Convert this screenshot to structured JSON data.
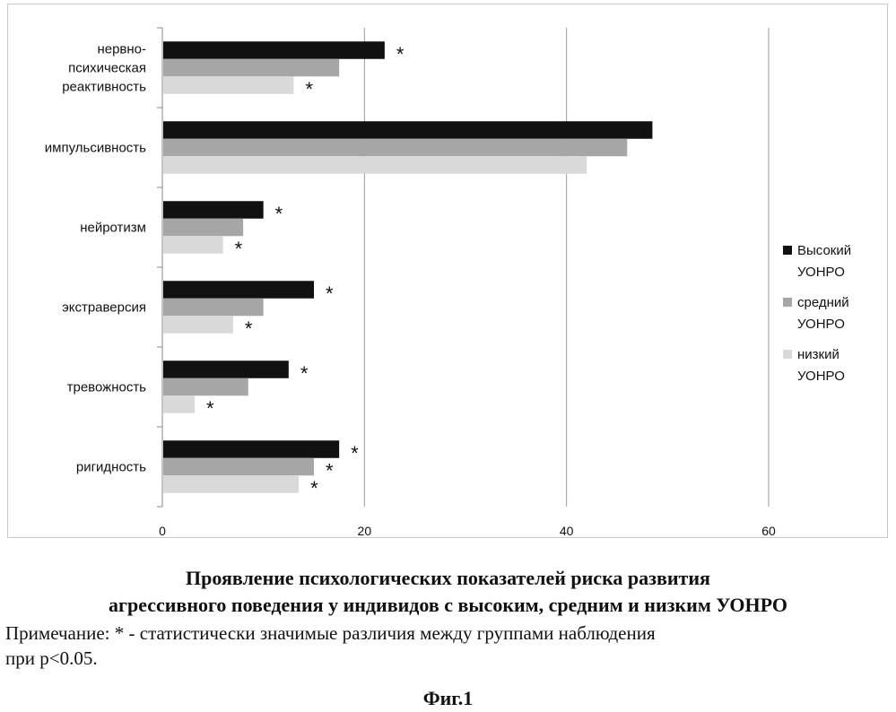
{
  "chart_data": {
    "type": "bar",
    "orientation": "horizontal",
    "categories": [
      [
        "нервно-",
        "психическая",
        "реактивность"
      ],
      [
        "импульсивность"
      ],
      [
        "нейротизм"
      ],
      [
        "экстраверсия"
      ],
      [
        "тревожность"
      ],
      [
        "ригидность"
      ]
    ],
    "series": [
      {
        "name": "Высокий УОНРО",
        "legend_lines": [
          "Высокий",
          "УОНРО"
        ],
        "color": "#111111",
        "values": [
          22,
          48.5,
          10,
          15,
          12.5,
          17.5
        ],
        "significant": [
          true,
          false,
          true,
          true,
          true,
          true
        ]
      },
      {
        "name": "средний УОНРО",
        "legend_lines": [
          "средний",
          "УОНРО"
        ],
        "color": "#a6a6a6",
        "values": [
          17.5,
          46,
          8,
          10,
          8.5,
          15
        ],
        "significant": [
          false,
          false,
          false,
          false,
          false,
          true
        ]
      },
      {
        "name": "низкий УОНРО",
        "legend_lines": [
          "низкий",
          "УОНРО"
        ],
        "color": "#d9d9d9",
        "values": [
          13,
          42,
          6,
          7,
          3.2,
          13.5
        ],
        "significant": [
          true,
          false,
          true,
          true,
          true,
          true
        ]
      }
    ],
    "xlim": [
      0,
      60
    ],
    "xticks": [
      "0",
      "20",
      "40",
      "60"
    ],
    "grid": true,
    "legend_position": "right",
    "significance_marker": "*"
  },
  "caption": {
    "title_line1": "Проявление психологических показателей риска развития",
    "title_line2": "агрессивного поведения у индивидов с высоким, средним и низким УОНРО",
    "note_line1": "Примечание: * - статистически значимые различия между группами наблюдения",
    "note_line2": "при р<0.05.",
    "figure_label": "Фиг.1"
  }
}
